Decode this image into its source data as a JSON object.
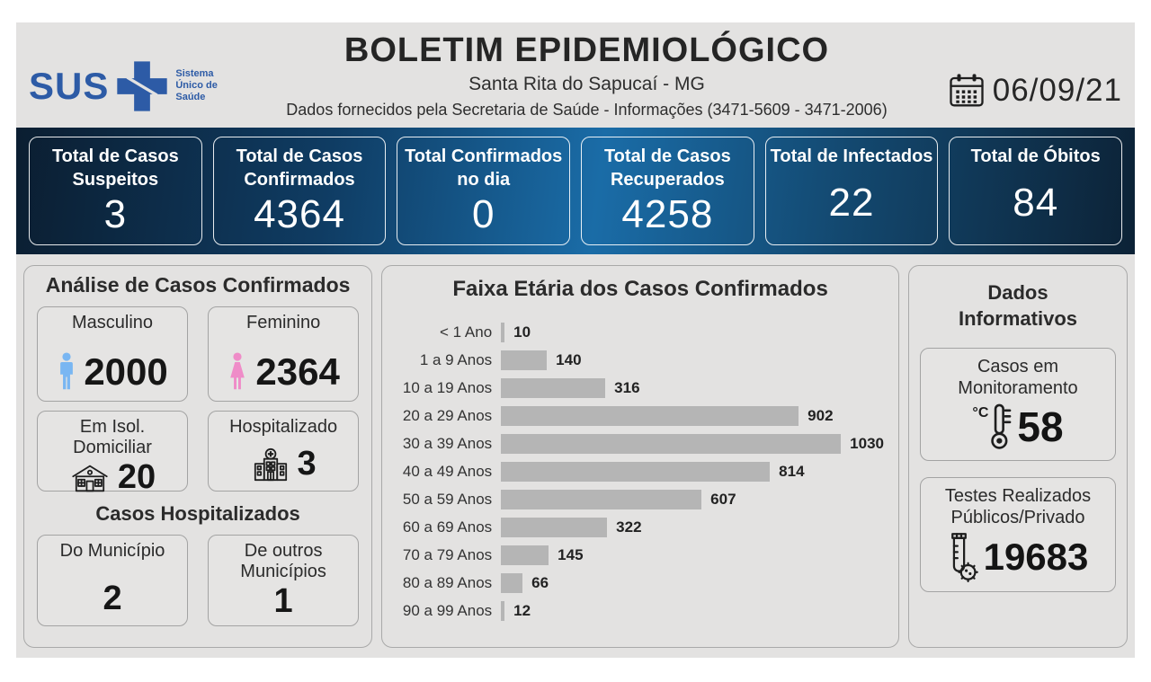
{
  "page": {
    "title": "BOLETIM EPIDEMIOLÓGICO",
    "subtitle": "Santa Rita do Sapucaí - MG",
    "source_line": "Dados fornecidos pela Secretaria de Saúde - Informações (3471-5609 - 3471-2006)",
    "date": "06/09/21",
    "logo": {
      "text": "SUS",
      "tagline": "Sistema Único de Saúde"
    }
  },
  "colors": {
    "sus_blue": "#2d5ba6",
    "bar_gradient_dark": "#0b1e31",
    "bar_gradient_light": "#1a6ca7",
    "male_icon": "#79b6f2",
    "female_icon": "#ef8cc8",
    "chart_bar": "#b5b5b5",
    "board_background": "#e3e2e1"
  },
  "summary_cards": [
    {
      "label": "Total de Casos Suspeitos",
      "value": 3
    },
    {
      "label": "Total de Casos Confirmados",
      "value": 4364
    },
    {
      "label": "Total Confirmados no dia",
      "value": 0
    },
    {
      "label": "Total de Casos Recuperados",
      "value": 4258
    },
    {
      "label": "Total de Infectados",
      "value": 22
    },
    {
      "label": "Total de Óbitos",
      "value": 84
    }
  ],
  "analysis": {
    "title": "Análise de Casos Confirmados",
    "gender_cards": [
      {
        "label": "Masculino",
        "value": 2000,
        "icon": "male-icon"
      },
      {
        "label": "Feminino",
        "value": 2364,
        "icon": "female-icon"
      }
    ],
    "status_cards": [
      {
        "label": "Em Isol. Domiciliar",
        "value": 20,
        "icon": "house-icon"
      },
      {
        "label": "Hospitalizado",
        "value": 3,
        "icon": "hospital-icon"
      }
    ],
    "hospitalized": {
      "title": "Casos Hospitalizados",
      "cards": [
        {
          "label": "Do Município",
          "value": 2
        },
        {
          "label": "De outros Municípios",
          "value": 1
        }
      ]
    }
  },
  "chart_data": {
    "type": "bar",
    "orientation": "horizontal",
    "title": "Faixa Etária dos Casos Confirmados",
    "categories": [
      "< 1 Ano",
      "1 a 9 Anos",
      "10 a 19 Anos",
      "20 a 29 Anos",
      "30 a 39 Anos",
      "40 a 49 Anos",
      "50 a 59 Anos",
      "60 a 69 Anos",
      "70 a 79 Anos",
      "80 a 89 Anos",
      "90 a 99 Anos"
    ],
    "values": [
      10,
      140,
      316,
      902,
      1030,
      814,
      607,
      322,
      145,
      66,
      12
    ],
    "xlim": [
      0,
      1030
    ],
    "bar_color": "#b5b5b5",
    "grid": false,
    "value_labels": true
  },
  "info": {
    "title": "Dados Informativos",
    "cards": [
      {
        "label": "Casos em Monitoramento",
        "value": 58,
        "icon": "thermometer-icon"
      },
      {
        "label": "Testes Realizados Públicos/Privado",
        "value": 19683,
        "icon": "testtube-icon"
      }
    ]
  }
}
